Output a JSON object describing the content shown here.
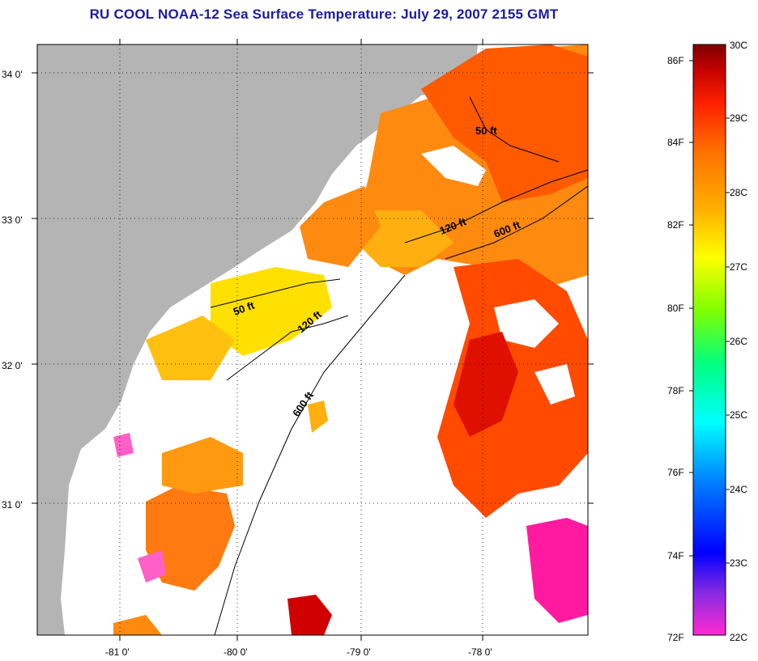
{
  "title": "RU COOL  NOAA-12  Sea Surface Temperature:  July 29, 2007 2155 GMT",
  "lat_labels": [
    "34 0'",
    "33 0'",
    "32 0'",
    "31 0'"
  ],
  "lon_labels": [
    "-81 0'",
    "-80 0'",
    "-79 0'",
    "-78 0'"
  ],
  "depth_labels": [
    "50 ft",
    "120 ft",
    "600 ft",
    "50 ft",
    "120 ft",
    "600 ft"
  ],
  "colorbar": {
    "fahrenheit": [
      "86F",
      "84F",
      "82F",
      "80F",
      "78F",
      "76F",
      "74F",
      "72F"
    ],
    "celsius": [
      "30C",
      "29C",
      "28C",
      "27C",
      "26C",
      "25C",
      "24C",
      "23C",
      "22C"
    ],
    "stops": [
      "#ff2ad0",
      "#8a2be2",
      "#0000ff",
      "#0080ff",
      "#00ffff",
      "#00ff80",
      "#80ff00",
      "#ffff00",
      "#ffb000",
      "#ff7000",
      "#ff2000",
      "#c00000",
      "#800000"
    ]
  },
  "colors": {
    "land": "#b4b4b4",
    "title": "#1a1aa6"
  }
}
